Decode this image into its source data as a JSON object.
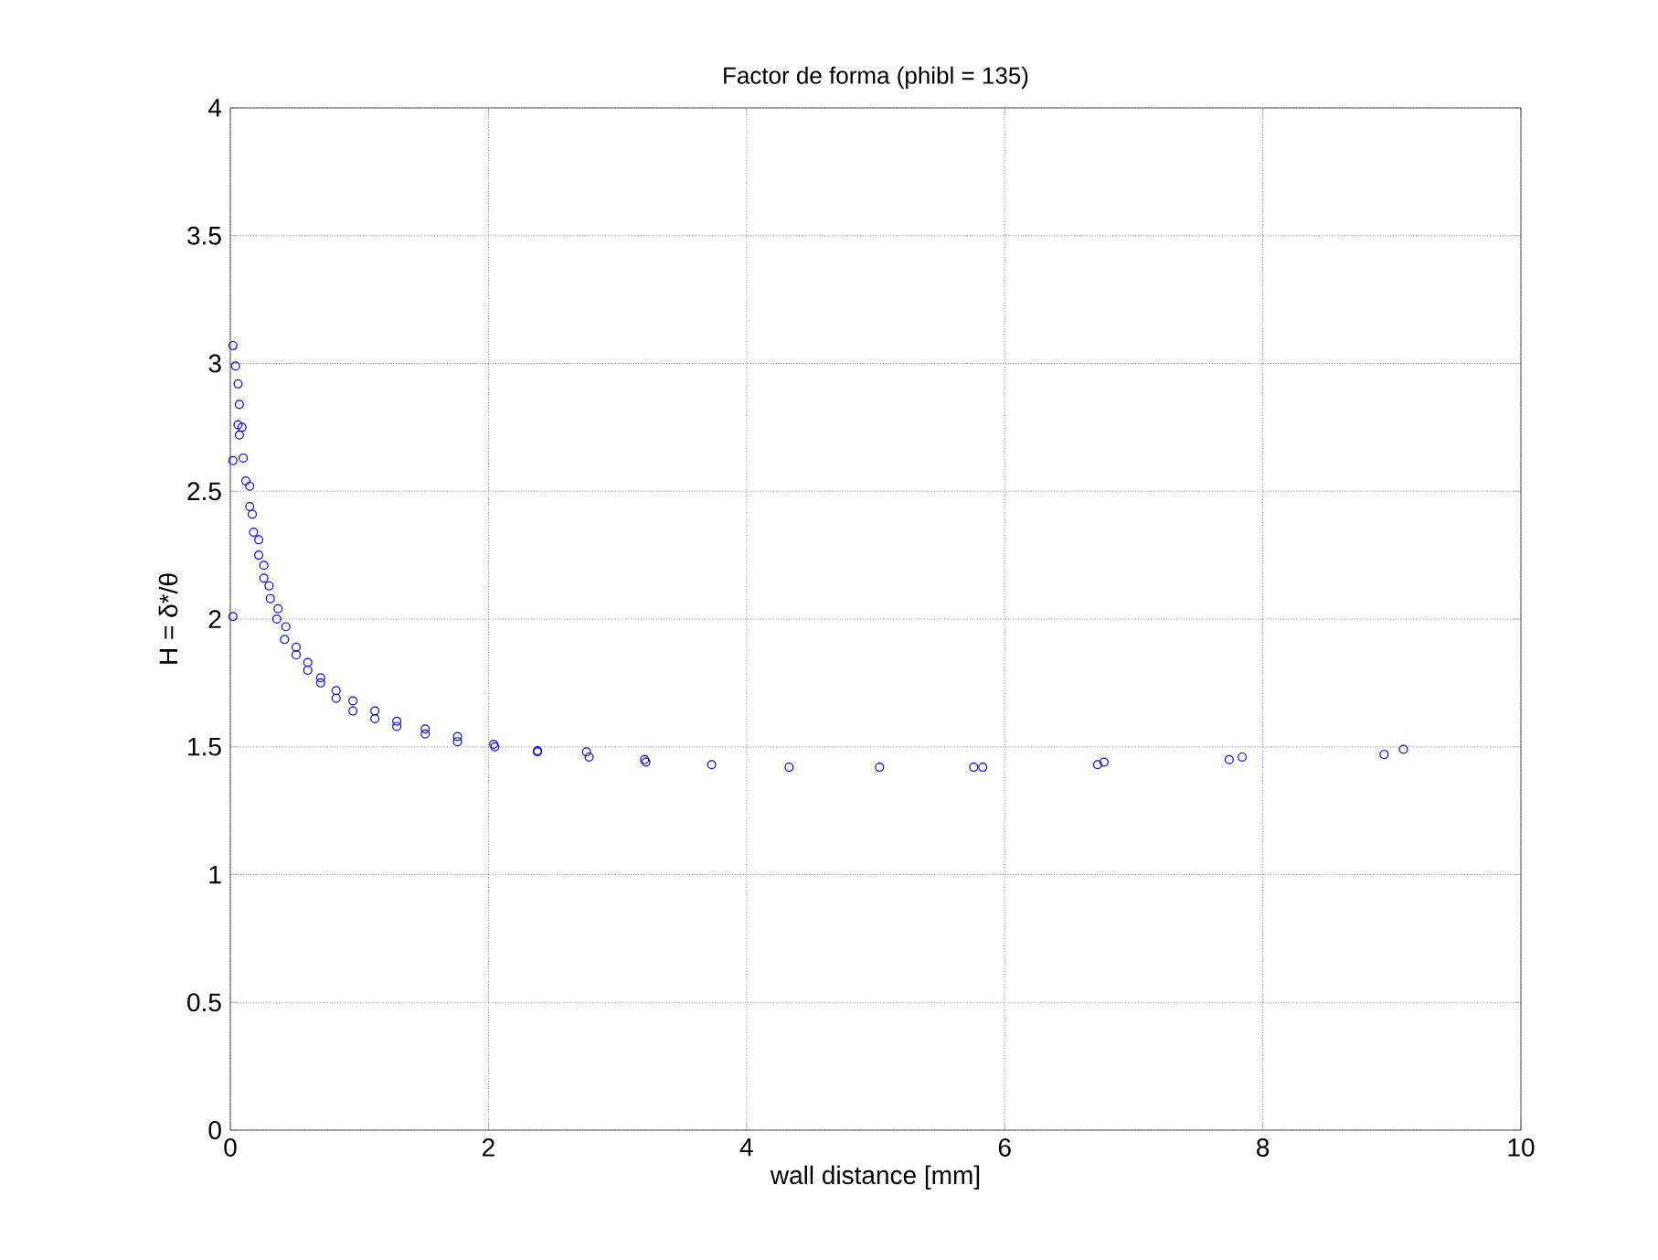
{
  "chart_data": {
    "type": "scatter",
    "title": "Factor de forma (phibl = 135)",
    "xlabel": "wall distance [mm]",
    "ylabel": "H = δ*/θ",
    "x": [
      0.02,
      0.04,
      0.06,
      0.07,
      0.06,
      0.09,
      0.07,
      0.1,
      0.02,
      0.12,
      0.15,
      0.15,
      0.17,
      0.18,
      0.22,
      0.22,
      0.26,
      0.26,
      0.3,
      0.31,
      0.37,
      0.36,
      0.43,
      0.42,
      0.02,
      0.51,
      0.51,
      0.6,
      0.6,
      0.7,
      0.7,
      0.82,
      0.82,
      0.95,
      0.95,
      1.12,
      1.12,
      1.29,
      1.29,
      1.51,
      1.51,
      1.76,
      1.76,
      2.04,
      2.05,
      2.38,
      2.38,
      2.76,
      2.78,
      3.21,
      3.22,
      3.73,
      4.33,
      5.03,
      5.76,
      5.83,
      6.72,
      6.77,
      7.74,
      7.84,
      8.94,
      9.09
    ],
    "values": [
      3.07,
      2.99,
      2.92,
      2.84,
      2.76,
      2.75,
      2.72,
      2.63,
      2.62,
      2.54,
      2.52,
      2.44,
      2.41,
      2.34,
      2.31,
      2.25,
      2.21,
      2.16,
      2.13,
      2.08,
      2.04,
      2.0,
      1.97,
      1.92,
      2.01,
      1.89,
      1.86,
      1.83,
      1.8,
      1.77,
      1.75,
      1.72,
      1.69,
      1.68,
      1.64,
      1.64,
      1.61,
      1.6,
      1.58,
      1.57,
      1.55,
      1.54,
      1.52,
      1.51,
      1.5,
      1.48,
      1.485,
      1.48,
      1.46,
      1.45,
      1.44,
      1.43,
      1.42,
      1.42,
      1.42,
      1.42,
      1.43,
      1.44,
      1.45,
      1.46,
      1.47,
      1.49
    ],
    "color": "#0000ff",
    "marker": "circle",
    "grid": true,
    "xlim": [
      0,
      10
    ],
    "ylim": [
      0,
      4
    ],
    "xticks": [
      0,
      2,
      4,
      6,
      8,
      10
    ],
    "yticks": [
      0,
      0.5,
      1,
      1.5,
      2,
      2.5,
      3,
      3.5,
      4
    ]
  }
}
